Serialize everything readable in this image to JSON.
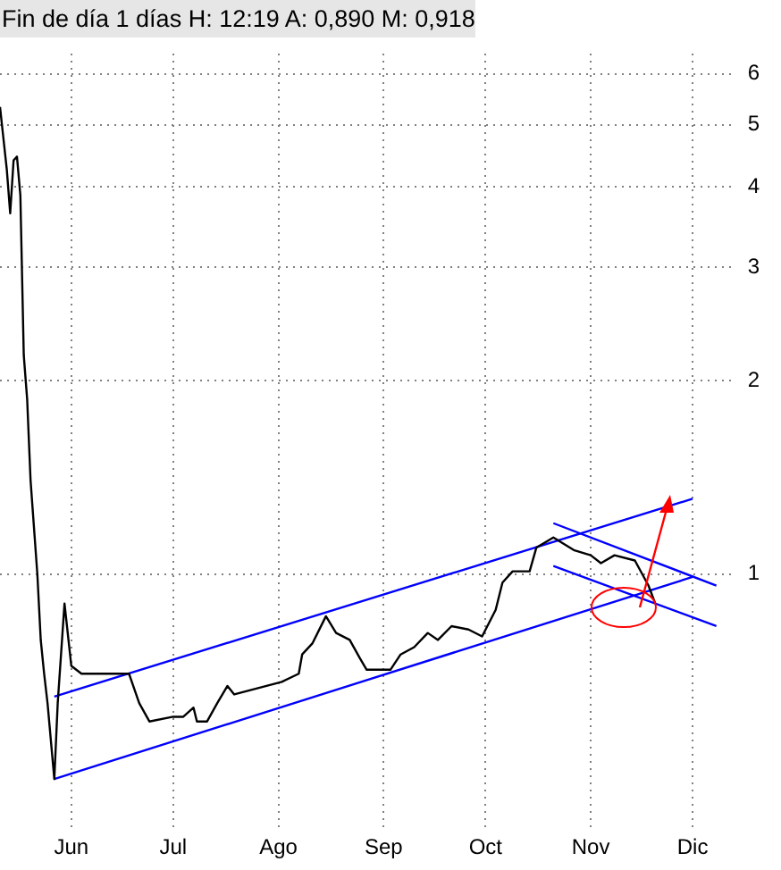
{
  "chart_data": {
    "type": "line",
    "title": "Fin de día 1 días H: 12:19 A: 0,890 M: 0,918",
    "x": [
      "--05-11",
      "--05-13",
      "--05-14",
      "--05-15",
      "--05-16",
      "--05-17",
      "--05-18",
      "--05-19",
      "--05-20",
      "--05-22",
      "--05-23",
      "--05-24",
      "--05-25",
      "--05-27",
      "--05-28",
      "--05-30",
      "--06-01",
      "--06-04",
      "--06-10",
      "--06-16",
      "--06-18",
      "--06-21",
      "--06-24",
      "--07-01",
      "--07-04",
      "--07-07",
      "--07-08",
      "--07-11",
      "--07-14",
      "--07-17",
      "--07-19",
      "--08-02",
      "--08-07",
      "--08-08",
      "--08-11",
      "--08-15",
      "--08-18",
      "--08-22",
      "--08-25",
      "--08-27",
      "--09-03",
      "--09-06",
      "--09-10",
      "--09-14",
      "--09-17",
      "--09-21",
      "--09-26",
      "--09-30",
      "--10-04",
      "--10-06",
      "--10-09",
      "--10-14",
      "--10-16",
      "--10-21",
      "--10-27",
      "--11-01",
      "--11-04",
      "--11-08",
      "--11-14",
      "--11-18",
      "--11-20"
    ],
    "series": [
      {
        "color": "#000000",
        "values": [
          5.33,
          4.26,
          3.64,
          4.4,
          4.46,
          3.88,
          2.19,
          1.87,
          1.4,
          1.0,
          0.79,
          0.7,
          0.63,
          0.48,
          0.63,
          0.9,
          0.72,
          0.7,
          0.7,
          0.7,
          0.7,
          0.63,
          0.59,
          0.6,
          0.6,
          0.62,
          0.59,
          0.59,
          0.63,
          0.67,
          0.65,
          0.68,
          0.7,
          0.75,
          0.78,
          0.86,
          0.81,
          0.79,
          0.74,
          0.71,
          0.71,
          0.75,
          0.77,
          0.81,
          0.79,
          0.83,
          0.82,
          0.8,
          0.88,
          0.97,
          1.01,
          1.01,
          1.1,
          1.14,
          1.09,
          1.07,
          1.04,
          1.07,
          1.05,
          0.96,
          0.9
        ]
      },
      {
        "color": "#0000ff",
        "x": [
          "--05-27",
          "--12-01"
        ],
        "values": [
          0.48,
          0.99
        ]
      },
      {
        "color": "#0000ff",
        "x": [
          "--05-27",
          "--12-01"
        ],
        "values": [
          0.645,
          1.31
        ]
      },
      {
        "color": "#0000ff",
        "x": [
          "--10-21",
          "--12-08"
        ],
        "values": [
          1.2,
          0.96
        ]
      },
      {
        "color": "#0000ff",
        "x": [
          "--10-21",
          "--12-08"
        ],
        "values": [
          1.03,
          0.83
        ]
      }
    ],
    "log": "y",
    "ylim": [
      0.4,
      6.45
    ],
    "yticks": [
      1,
      2,
      3,
      4,
      5,
      6
    ],
    "xlim": [
      "--05-11",
      "--12-13"
    ],
    "xticks": [
      {
        "value": "--06-01",
        "label": "Jun"
      },
      {
        "value": "--07-01",
        "label": "Jul"
      },
      {
        "value": "--08-01",
        "label": "Ago"
      },
      {
        "value": "--09-01",
        "label": "Sep"
      },
      {
        "value": "--10-01",
        "label": "Oct"
      },
      {
        "value": "--11-01",
        "label": "Nov"
      },
      {
        "value": "--12-01",
        "label": "Dic"
      }
    ],
    "grid": true,
    "legend": false,
    "marker": "none",
    "line_style": "solid"
  }
}
